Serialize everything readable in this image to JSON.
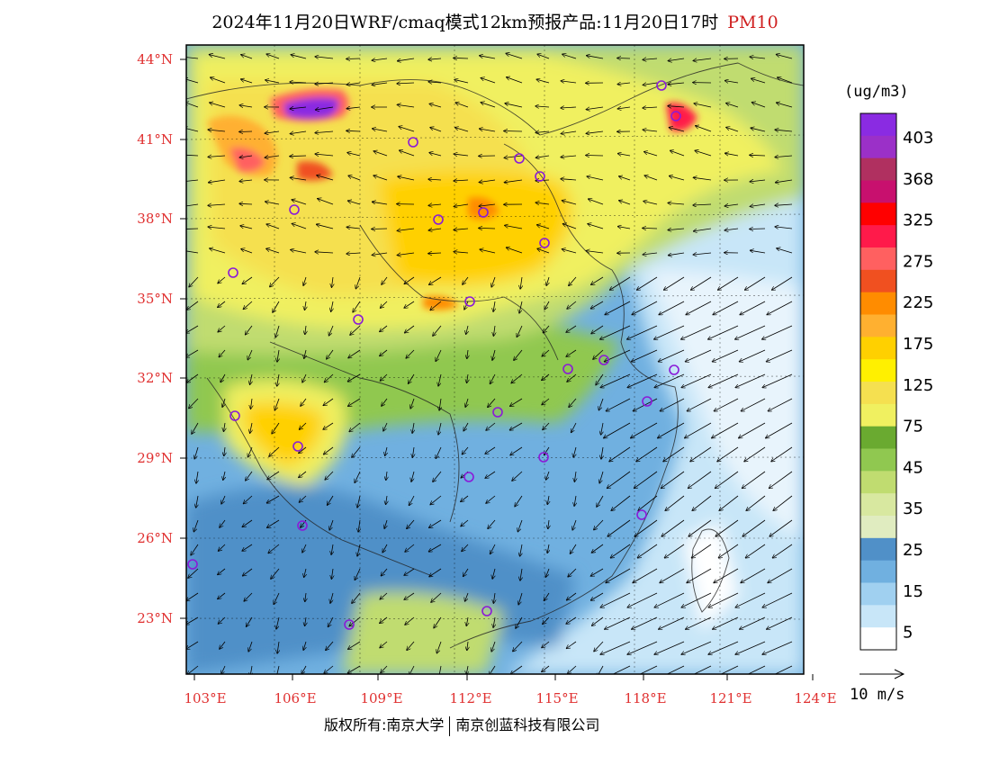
{
  "title": {
    "main": "2024年11月20日WRF/cmaq模式12km预报产品:11月20日17时",
    "variable": "PM10"
  },
  "map": {
    "lon_range": [
      103,
      124
    ],
    "lat_range": [
      21,
      44
    ],
    "lon_ticks": [
      "103°E",
      "106°E",
      "109°E",
      "112°E",
      "115°E",
      "118°E",
      "121°E",
      "124°E"
    ],
    "lat_ticks": [
      "44°N",
      "41°N",
      "38°N",
      "35°N",
      "32°N",
      "29°N",
      "26°N",
      "23°N"
    ],
    "city_markers": [
      "marker",
      "marker",
      "marker",
      "marker",
      "marker",
      "marker",
      "marker",
      "marker",
      "marker",
      "marker",
      "marker",
      "marker",
      "marker",
      "marker",
      "marker",
      "marker",
      "marker",
      "marker",
      "marker",
      "marker",
      "marker",
      "marker",
      "marker",
      "marker",
      "marker",
      "marker"
    ]
  },
  "colorbar": {
    "unit": "(ug/m3)",
    "labels": [
      "403",
      "368",
      "325",
      "275",
      "225",
      "175",
      "125",
      "75",
      "45",
      "35",
      "25",
      "15",
      "5"
    ],
    "colors": [
      "#8a2be2",
      "#9b30c8",
      "#b03060",
      "#c8106e",
      "#ff0000",
      "#ff1a4a",
      "#ff6060",
      "#f05020",
      "#ff8c00",
      "#ffb030",
      "#ffd000",
      "#fff000",
      "#f5e050",
      "#f0f060",
      "#6aaa30",
      "#90c850",
      "#c0dc70",
      "#d8e8a0",
      "#e0ecc0",
      "#5090c8",
      "#70b0e0",
      "#a0d0f0",
      "#c8e6f8",
      "#ffffff"
    ]
  },
  "vector_legend": "10 m/s",
  "footer": {
    "left": "版权所有:南京大学",
    "right": "南京创蓝科技有限公司"
  }
}
